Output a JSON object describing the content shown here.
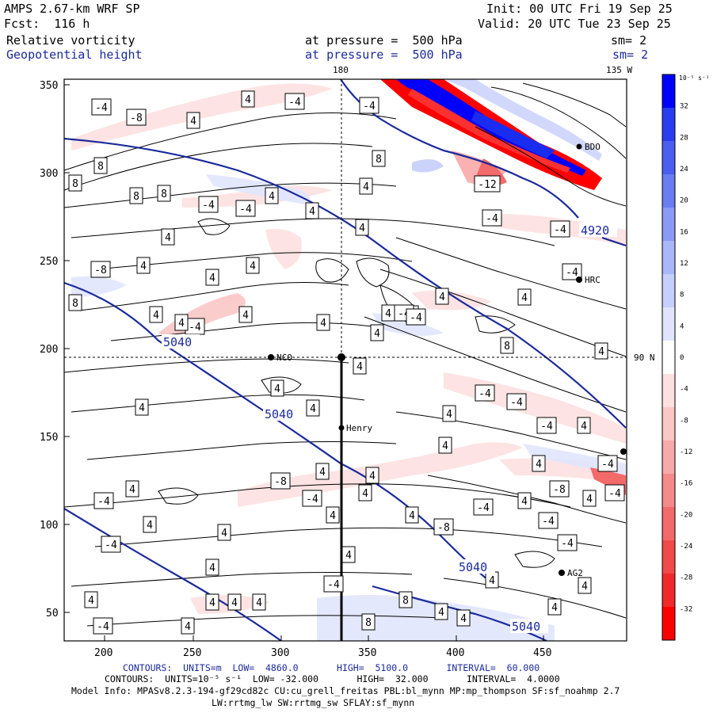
{
  "header": {
    "model": "AMPS 2.67-km WRF SP",
    "forecast": "Fcst:  116 h",
    "init": "Init: 00 UTC Fri 19 Sep 25",
    "valid": "Valid: 20 UTC Tue 23 Sep 25",
    "field1_name": "Relative vorticity",
    "field1_level": "at pressure =  500 hPa",
    "field1_smooth": "sm= 2",
    "field2_name": "Geopotential height",
    "field2_level": "at pressure =  500 hPa",
    "field2_smooth": "sm= 2"
  },
  "map": {
    "graticule_labels": {
      "lon_180": "180",
      "lon_135w": "135 W",
      "lat_90n": "90 N"
    },
    "x_ticks": [
      "200",
      "250",
      "300",
      "350",
      "400",
      "450"
    ],
    "y_ticks": [
      "350",
      "300",
      "250",
      "200",
      "150",
      "100",
      "50"
    ],
    "stations": [
      "NCO",
      "Henry",
      "HRC",
      "AG2",
      "BDO"
    ],
    "height_labels": [
      "5040",
      "5040",
      "5040",
      "5040",
      "4920"
    ],
    "vort_labels": [
      "-4",
      "-8",
      "4",
      "-4",
      "-4",
      "4",
      "8",
      "8",
      "8",
      "8",
      "-4",
      "-4",
      "4",
      "4",
      "4",
      "4",
      "8",
      "4",
      "4",
      "-8",
      "8",
      "4",
      "4",
      "-12",
      "-4",
      "-4",
      "-4",
      "4",
      "4",
      "4",
      "4",
      "4",
      "-4",
      "4",
      "4",
      "4",
      "8",
      "4",
      "4",
      "4",
      "4",
      "-4",
      "-4",
      "-4",
      "4",
      "4",
      "4",
      "-4",
      "4",
      "-8",
      "4",
      "4",
      "-4",
      "-4",
      "-8",
      "4",
      "4",
      "-4",
      "4",
      "4",
      "-4",
      "-4",
      "-4",
      "4",
      "4",
      "4",
      "4",
      "4",
      "4",
      "4",
      "-4",
      "8",
      "4",
      "8",
      "4",
      "4",
      "4",
      "-4",
      "-4",
      "-4",
      "4",
      "4",
      "4",
      "4",
      "4",
      "-8",
      "4",
      "4",
      "-4"
    ],
    "colors": {
      "height_contour": "#1b2a9c",
      "neg_vorticity": "#ff0000",
      "pos_vorticity": "#0000ff"
    }
  },
  "colorbar": {
    "unit": "10⁻⁵ s⁻¹",
    "labels": [
      "32",
      "28",
      "24",
      "20",
      "16",
      "12",
      "8",
      "4",
      "0",
      "-4",
      "-8",
      "-12",
      "-16",
      "-20",
      "-24",
      "-28",
      "-32"
    ],
    "colors": [
      "#0000ff",
      "#2a3cf0",
      "#4a5ef0",
      "#6a7cf2",
      "#8a9af5",
      "#a9b6f8",
      "#c6cefb",
      "#e0e5fd",
      "#ffffff",
      "#fde0e0",
      "#fbc6c6",
      "#f8a9a9",
      "#f58a8a",
      "#f26a6a",
      "#f04a4a",
      "#f02a2a",
      "#ff0000"
    ]
  },
  "footer": {
    "line1": "CONTOURS:  UNITS=m  LOW=  4860.0       HIGH=  5100.0       INTERVAL=  60.000",
    "line2": "CONTOURS:  UNITS=10⁻⁵ s⁻¹  LOW= -32.000       HIGH=  32.000       INTERVAL=  4.0000",
    "line3": "Model Info: MPASv8.2.3-194-gf29cd82c CU:cu_grell_freitas PBL:bl_mynn MP:mp_thompson SF:sf_noahmp 2.7",
    "line4": "LW:rrtmg_lw SW:rrtmg_sw SFLAY:sf_mynn"
  }
}
